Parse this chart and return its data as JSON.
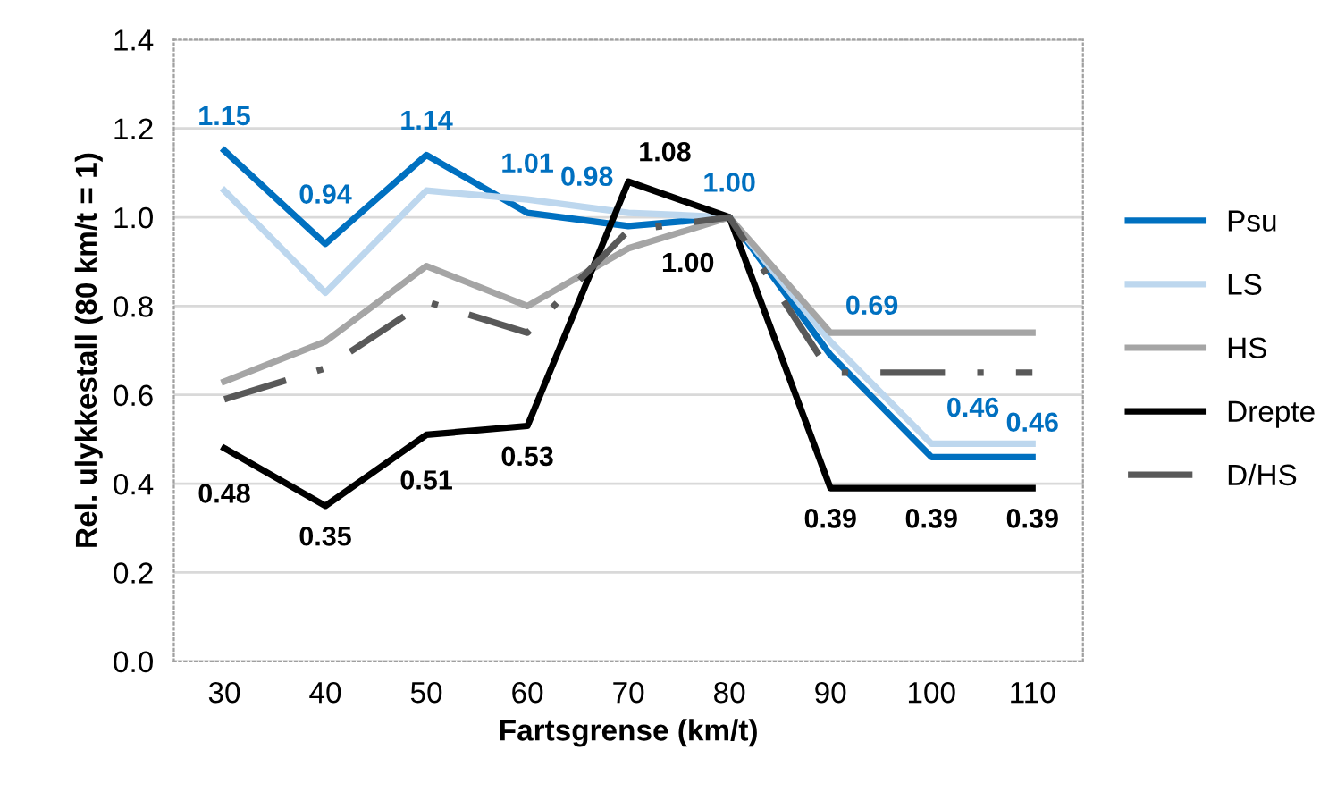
{
  "chart_data": {
    "type": "line",
    "xlabel": "Fartsgrense (km/t)",
    "ylabel": "Rel. ulykkestall (80 km/t = 1)",
    "categories": [
      "30",
      "40",
      "50",
      "60",
      "70",
      "80",
      "90",
      "100",
      "110"
    ],
    "ylim": [
      0,
      1.4
    ],
    "yticks": [
      {
        "value": 0,
        "label": "0.0"
      },
      {
        "value": 0.2,
        "label": "0.2"
      },
      {
        "value": 0.4,
        "label": "0.4"
      },
      {
        "value": 0.6,
        "label": "0.6"
      },
      {
        "value": 0.8,
        "label": "0.8"
      },
      {
        "value": 1.0,
        "label": "1.0"
      },
      {
        "value": 1.2,
        "label": "1.2"
      },
      {
        "value": 1.4,
        "label": "1.4"
      }
    ],
    "grid": "y",
    "legend": "right",
    "marker": "none",
    "series": [
      {
        "name": "Psu",
        "color": "#0070c0",
        "line_style": "solid",
        "values": [
          1.15,
          0.94,
          1.14,
          1.01,
          0.98,
          1.0,
          0.69,
          0.46,
          0.46
        ],
        "value_labels": [
          "1.15",
          "0.94",
          "1.14",
          "1.01",
          "0.98",
          "1.00",
          "0.69",
          "0.46",
          "0.46"
        ]
      },
      {
        "name": "LS",
        "color": "#bdd7ee",
        "line_style": "solid",
        "values": [
          1.06,
          0.83,
          1.06,
          1.04,
          1.01,
          1.0,
          0.72,
          0.49,
          0.49
        ]
      },
      {
        "name": "HS",
        "color": "#a5a5a5",
        "line_style": "solid",
        "values": [
          0.63,
          0.72,
          0.89,
          0.8,
          0.93,
          1.0,
          0.74,
          0.74,
          0.74
        ]
      },
      {
        "name": "Drepte",
        "color": "#000000",
        "line_style": "solid",
        "values": [
          0.48,
          0.35,
          0.51,
          0.53,
          1.08,
          1.0,
          0.39,
          0.39,
          0.39
        ],
        "value_labels": [
          "0.48",
          "0.35",
          "0.51",
          "0.53",
          "1.08",
          "1.00",
          "0.39",
          "0.39",
          "0.39"
        ]
      },
      {
        "name": "D/HS",
        "color": "#595959",
        "line_style": "dashdot",
        "values": [
          0.59,
          0.66,
          0.81,
          0.74,
          0.97,
          1.0,
          0.65,
          0.65,
          0.65
        ]
      }
    ]
  }
}
